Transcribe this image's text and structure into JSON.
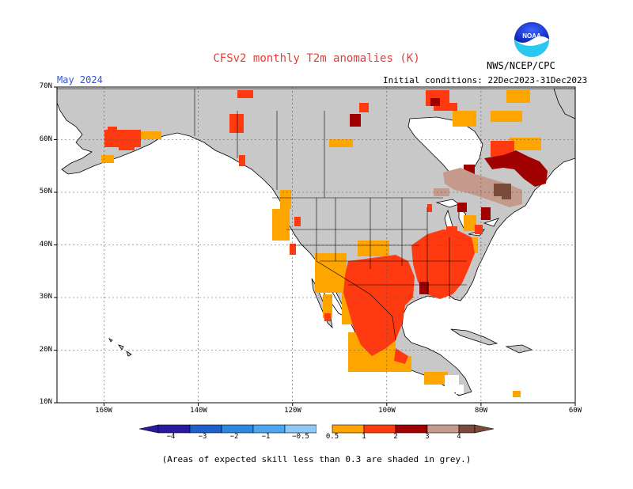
{
  "title": "CFSv2 monthly T2m anomalies (K)",
  "month": "May 2024",
  "initial_conditions": "Initial conditions: 22Dec2023-31Dec2023",
  "agency": "NWS/NCEP/CPC",
  "logo_text": "NOAA",
  "footnote": "(Areas of expected skill less than 0.3 are shaded in grey.)",
  "map": {
    "lat_labels": [
      "70N",
      "60N",
      "50N",
      "40N",
      "30N",
      "20N",
      "10N"
    ],
    "lon_labels": [
      "160W",
      "140W",
      "120W",
      "100W",
      "80W",
      "60W"
    ],
    "lat_range": [
      10,
      70
    ],
    "lon_range": [
      -170,
      -60
    ],
    "land_color": "#c8c8c8",
    "ocean_color": "#ffffff"
  },
  "colorbar": {
    "labels": [
      "−4",
      "−3",
      "−2",
      "−1",
      "−0.5",
      "0.5",
      "1",
      "2",
      "3",
      "4"
    ],
    "colors": [
      "#2a1aa0",
      "#1f5fcc",
      "#2f88e0",
      "#4ea6f0",
      "#8cc8f8",
      "#ffffff",
      "#ffa500",
      "#ff3a10",
      "#a00000",
      "#c49a8c",
      "#7a4a3a"
    ]
  },
  "anomaly_regions": [
    {
      "name": "alaska-southwest",
      "lat": [
        58,
        62
      ],
      "lon": [
        -162,
        -150
      ],
      "level": "1-2"
    },
    {
      "name": "us-southern-plains",
      "lat": [
        27,
        37
      ],
      "lon": [
        -106,
        -92
      ],
      "level": "1-2"
    },
    {
      "name": "mexico-north",
      "lat": [
        20,
        29
      ],
      "lon": [
        -108,
        -97
      ],
      "level": "1-2"
    },
    {
      "name": "us-mississippi-valley",
      "lat": [
        30,
        41
      ],
      "lon": [
        -92,
        -82
      ],
      "level": "1-2"
    },
    {
      "name": "quebec-east",
      "lat": [
        50,
        56
      ],
      "lon": [
        -78,
        -66
      ],
      "level": "2-3"
    },
    {
      "name": "ontario-great-lakes",
      "lat": [
        46,
        51
      ],
      "lon": [
        -86,
        -72
      ],
      "level": "3-4"
    }
  ]
}
